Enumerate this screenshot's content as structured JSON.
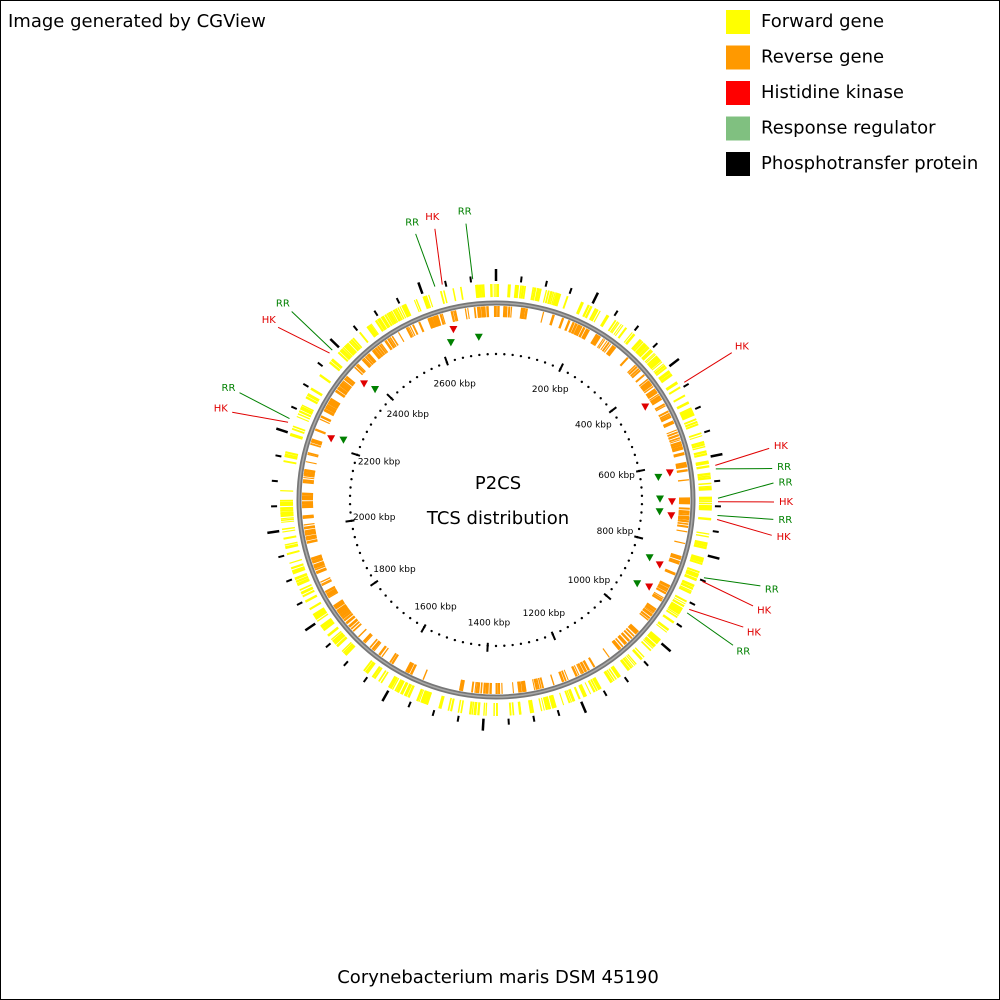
{
  "header": {
    "credit": "Image generated by CGView"
  },
  "legend": {
    "items": [
      {
        "label": "Forward gene",
        "color": "#ffff00"
      },
      {
        "label": "Reverse gene",
        "color": "#ff9900"
      },
      {
        "label": "Histidine kinase",
        "color": "#ff0000"
      },
      {
        "label": "Response regulator",
        "color": "#80c080"
      },
      {
        "label": "Phosphotransfer protein",
        "color": "#000000"
      }
    ]
  },
  "map": {
    "title": "P2CS",
    "subtitle": "TCS distribution",
    "organism": "Corynebacterium maris DSM 45190",
    "genome_length_kbp": 2750,
    "ticks": [
      {
        "value": 200,
        "label": "200 kbp"
      },
      {
        "value": 400,
        "label": "400 kbp"
      },
      {
        "value": 600,
        "label": "600 kbp"
      },
      {
        "value": 800,
        "label": "800 kbp"
      },
      {
        "value": 1000,
        "label": "1000 kbp"
      },
      {
        "value": 1200,
        "label": "1200 kbp"
      },
      {
        "value": 1400,
        "label": "1400 kbp"
      },
      {
        "value": 1600,
        "label": "1600 kbp"
      },
      {
        "value": 1800,
        "label": "1800 kbp"
      },
      {
        "value": 2000,
        "label": "2000 kbp"
      },
      {
        "value": 2200,
        "label": "2200 kbp"
      },
      {
        "value": 2400,
        "label": "2400 kbp"
      },
      {
        "value": 2600,
        "label": "2600 kbp"
      }
    ],
    "feature_colors": {
      "HK": "#e00000",
      "RR": "#008000"
    },
    "features": [
      {
        "label": "RR",
        "kbp": 2628
      },
      {
        "label": "HK",
        "kbp": 2643
      },
      {
        "label": "RR",
        "kbp": 2704
      },
      {
        "label": "HK",
        "kbp": 443
      },
      {
        "label": "HK",
        "kbp": 619
      },
      {
        "label": "RR",
        "kbp": 626
      },
      {
        "label": "RR",
        "kbp": 684
      },
      {
        "label": "HK",
        "kbp": 691
      },
      {
        "label": "RR",
        "kbp": 718
      },
      {
        "label": "HK",
        "kbp": 726
      },
      {
        "label": "RR",
        "kbp": 844
      },
      {
        "label": "HK",
        "kbp": 852
      },
      {
        "label": "HK",
        "kbp": 913
      },
      {
        "label": "RR",
        "kbp": 921
      },
      {
        "label": "HK",
        "kbp": 2379
      },
      {
        "label": "RR",
        "kbp": 2387
      },
      {
        "label": "HK",
        "kbp": 2219
      },
      {
        "label": "RR",
        "kbp": 2227
      }
    ]
  }
}
